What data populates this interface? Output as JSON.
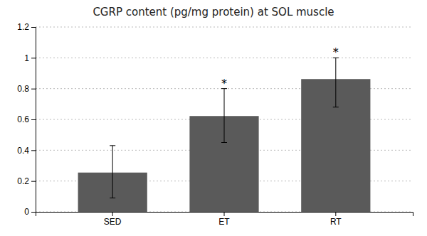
{
  "chart_data": {
    "type": "bar",
    "title": "CGRP content (pg/mg protein) at SOL muscle",
    "categories": [
      "SED",
      "ET",
      "RT"
    ],
    "values": [
      0.255,
      0.622,
      0.862
    ],
    "errors_lower": [
      0.165,
      0.172,
      0.182
    ],
    "errors_upper": [
      0.175,
      0.178,
      0.138
    ],
    "significance": [
      false,
      true,
      true
    ],
    "significance_label": "*",
    "color": "#5a5a5a",
    "ylim": [
      0,
      1.2
    ],
    "yticks": [
      0,
      0.2,
      0.4,
      0.6,
      0.8,
      1,
      1.2
    ],
    "grid": true
  }
}
